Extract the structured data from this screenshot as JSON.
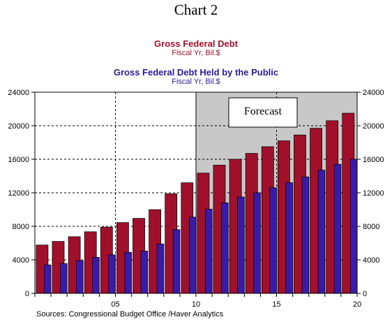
{
  "chart_data": {
    "type": "bar",
    "title": "Chart 2",
    "series": [
      {
        "name": "Gross Federal Debt",
        "unit": "Fiscal Yr, Bil.$",
        "color": "#a0102a",
        "values": [
          5770,
          6200,
          6760,
          7350,
          7900,
          8450,
          8950,
          9990,
          11880,
          13200,
          14350,
          15300,
          16000,
          16700,
          17500,
          18200,
          18900,
          19700,
          20600,
          21500
        ]
      },
      {
        "name": "Gross Federal Debt Held by the Public",
        "unit": "Fiscal Yr, Bil.$",
        "color": "#3a1aa8",
        "values": [
          3400,
          3550,
          3900,
          4300,
          4600,
          4900,
          5050,
          5900,
          7600,
          9100,
          10050,
          10800,
          11500,
          12000,
          12600,
          13200,
          13900,
          14700,
          15400,
          16000
        ]
      }
    ],
    "x_tick_labels": [
      "05",
      "10",
      "15",
      "20"
    ],
    "x_tick_label_positions": [
      5,
      10,
      15,
      20
    ],
    "first_year": 2001,
    "y_ticks": [
      0,
      4000,
      8000,
      12000,
      16000,
      20000,
      24000
    ],
    "ylim": [
      0,
      24000
    ],
    "forecast_start_year": 2011,
    "annotation": "Forecast",
    "source": "Sources:  Congressional Budget Office /Haver Analytics",
    "grid": "dashed",
    "colors": {
      "forecast_shade": "#c8c8c8"
    }
  }
}
